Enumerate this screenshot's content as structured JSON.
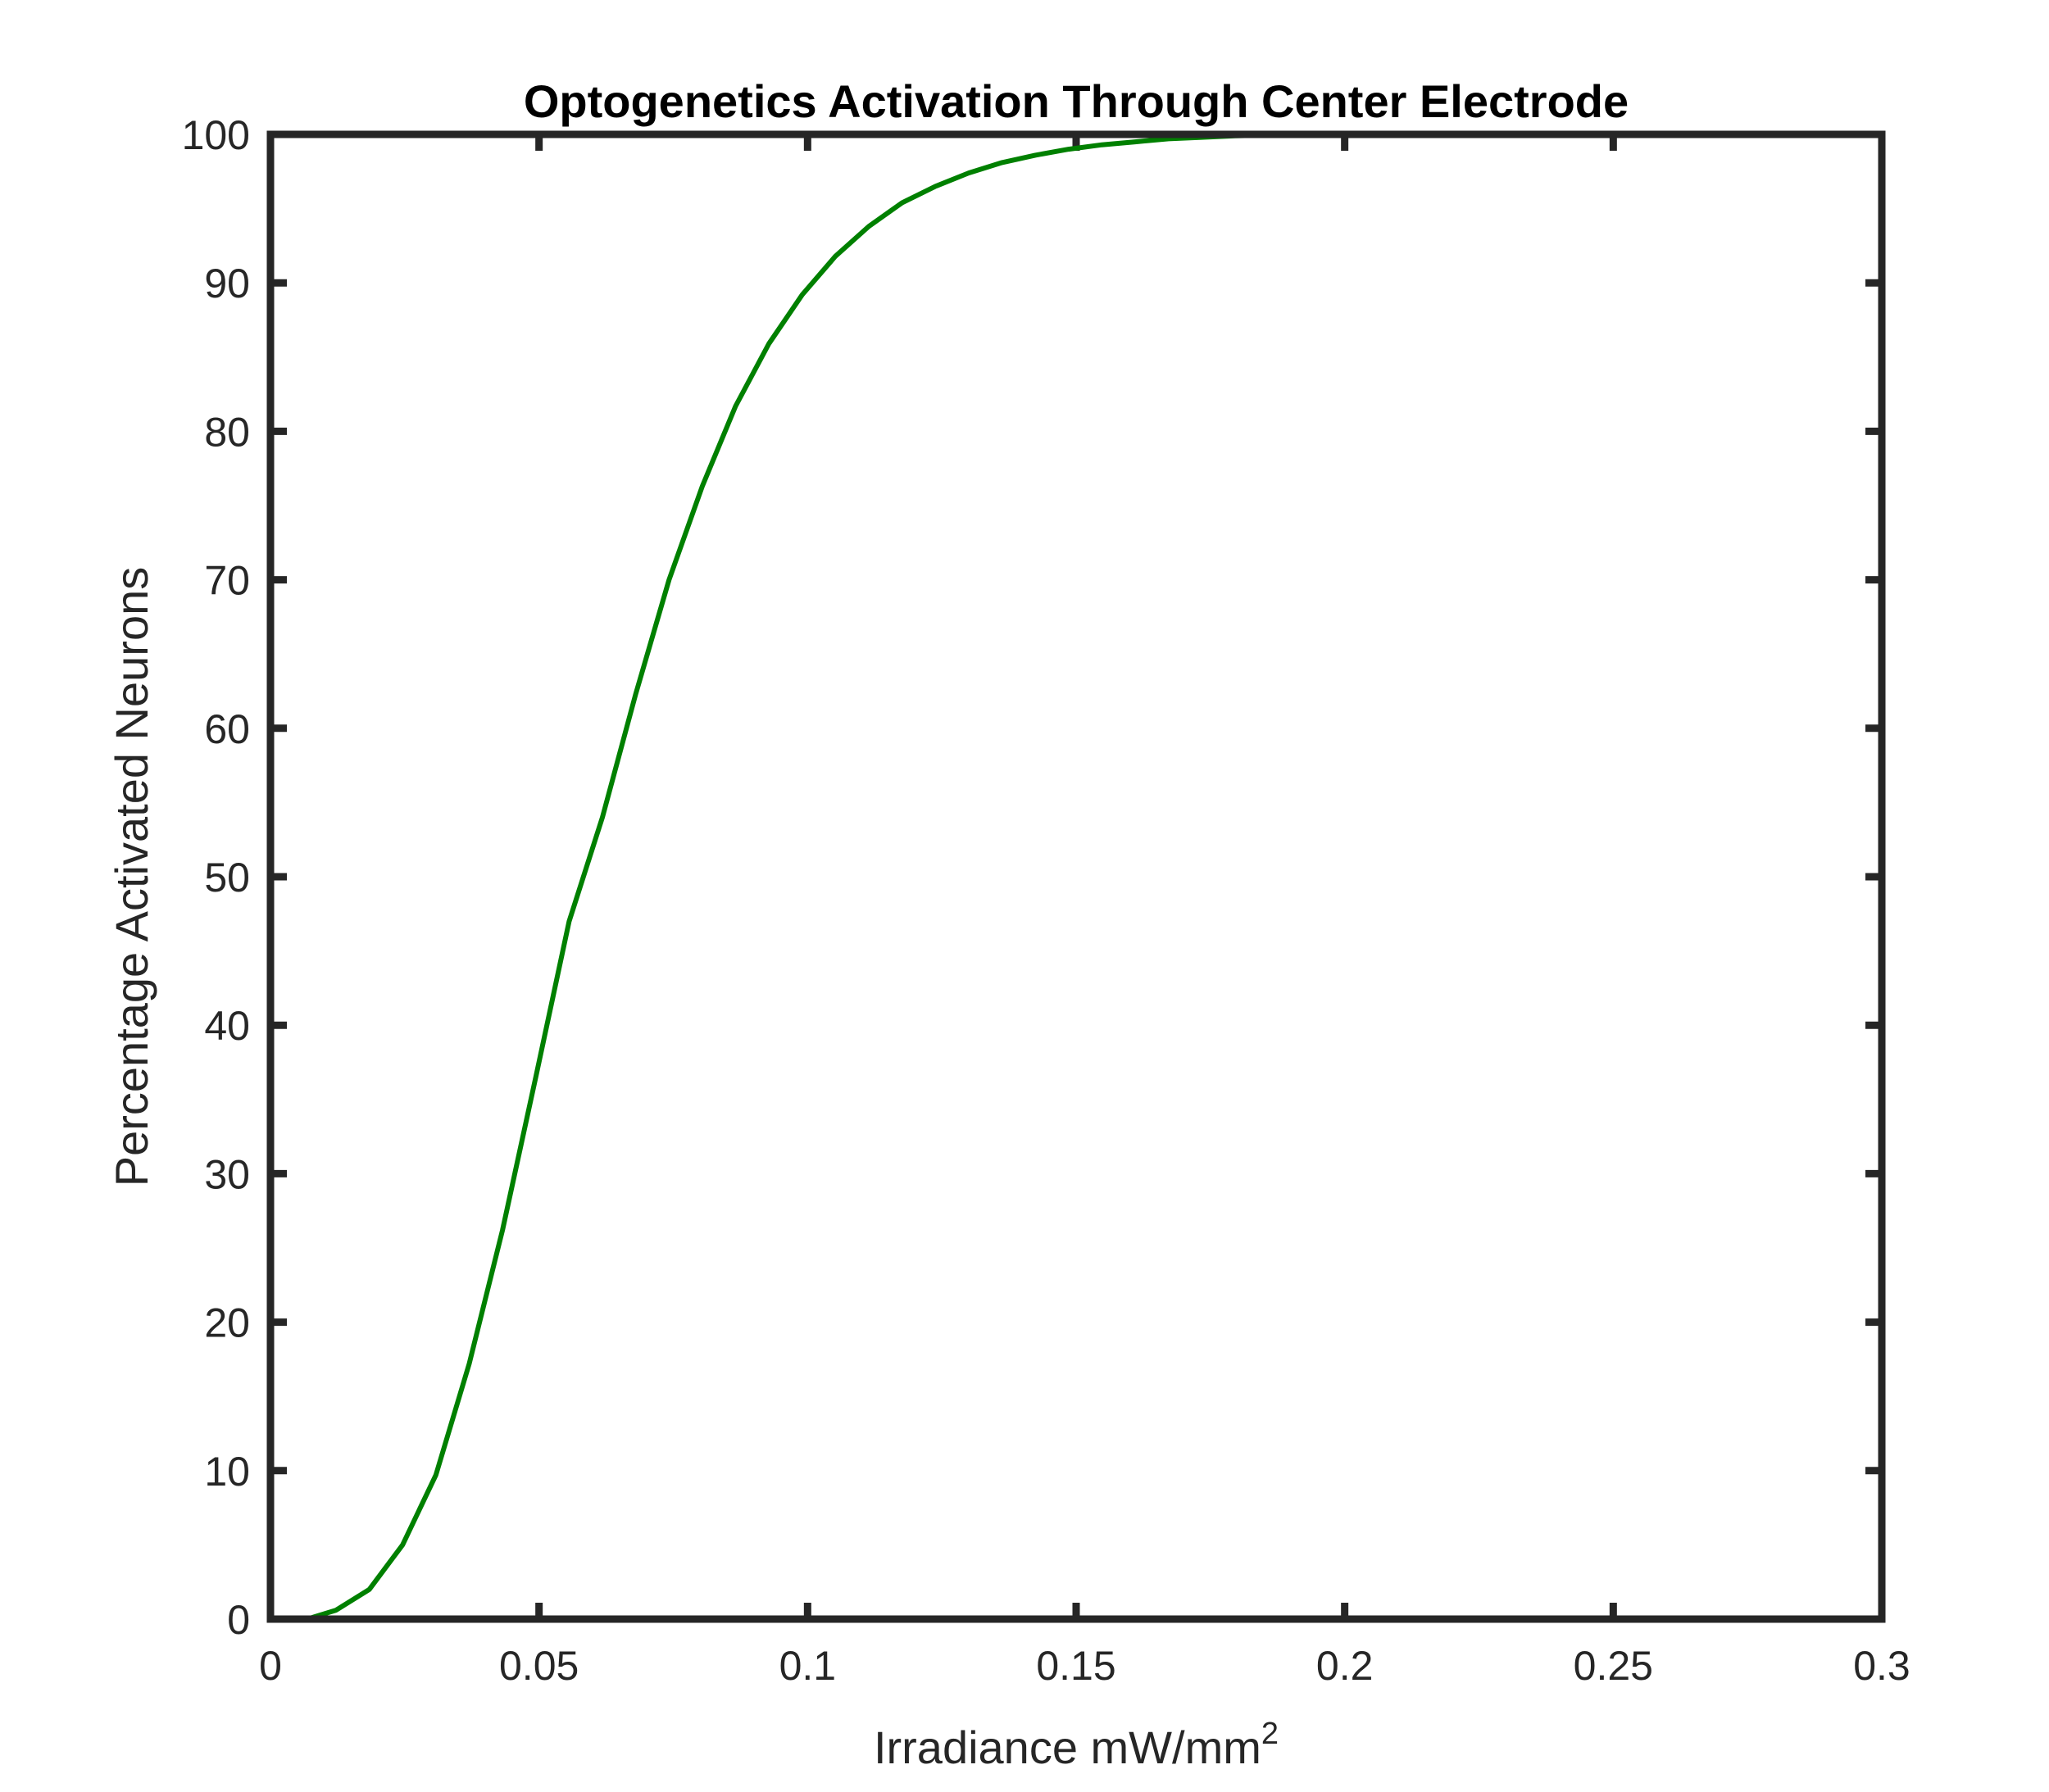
{
  "chart_data": {
    "type": "line",
    "title": "Optogenetics Activation Through Center Electrode",
    "xlabel": "Irradiance mW/mm",
    "xlabel_superscript": "2",
    "ylabel": "Percentage Activated Neurons",
    "xlim": [
      0,
      0.3
    ],
    "ylim": [
      0,
      100
    ],
    "xticks": [
      0,
      0.05,
      0.1,
      0.15,
      0.2,
      0.25,
      0.3
    ],
    "xtick_labels": [
      "0",
      "0.05",
      "0.1",
      "0.15",
      "0.2",
      "0.25",
      "0.3"
    ],
    "yticks": [
      0,
      10,
      20,
      30,
      40,
      50,
      60,
      70,
      80,
      90,
      100
    ],
    "ytick_labels": [
      "0",
      "10",
      "20",
      "30",
      "40",
      "50",
      "60",
      "70",
      "80",
      "90",
      "100"
    ],
    "grid": false,
    "series": [
      {
        "color": "#008000",
        "x": [
          0.0068,
          0.0122,
          0.0184,
          0.0246,
          0.0308,
          0.037,
          0.0432,
          0.0494,
          0.0556,
          0.0618,
          0.068,
          0.0742,
          0.0804,
          0.0866,
          0.0928,
          0.099,
          0.1052,
          0.1114,
          0.1176,
          0.1238,
          0.13,
          0.1362,
          0.1424,
          0.1486,
          0.1548,
          0.161,
          0.1672,
          0.1734,
          0.1796,
          0.1858,
          0.192,
          0.1982
        ],
        "y": [
          0,
          0.6,
          2.0,
          5.0,
          9.7,
          17.2,
          26.2,
          36.5,
          47.0,
          54.0,
          62.3,
          70.0,
          76.3,
          81.7,
          85.9,
          89.2,
          91.8,
          93.8,
          95.4,
          96.5,
          97.4,
          98.1,
          98.6,
          99.0,
          99.3,
          99.5,
          99.7,
          99.8,
          99.9,
          99.95,
          100,
          100
        ]
      }
    ]
  },
  "colors": {
    "axes": "#262626",
    "line": "#008000",
    "background": "#ffffff"
  }
}
